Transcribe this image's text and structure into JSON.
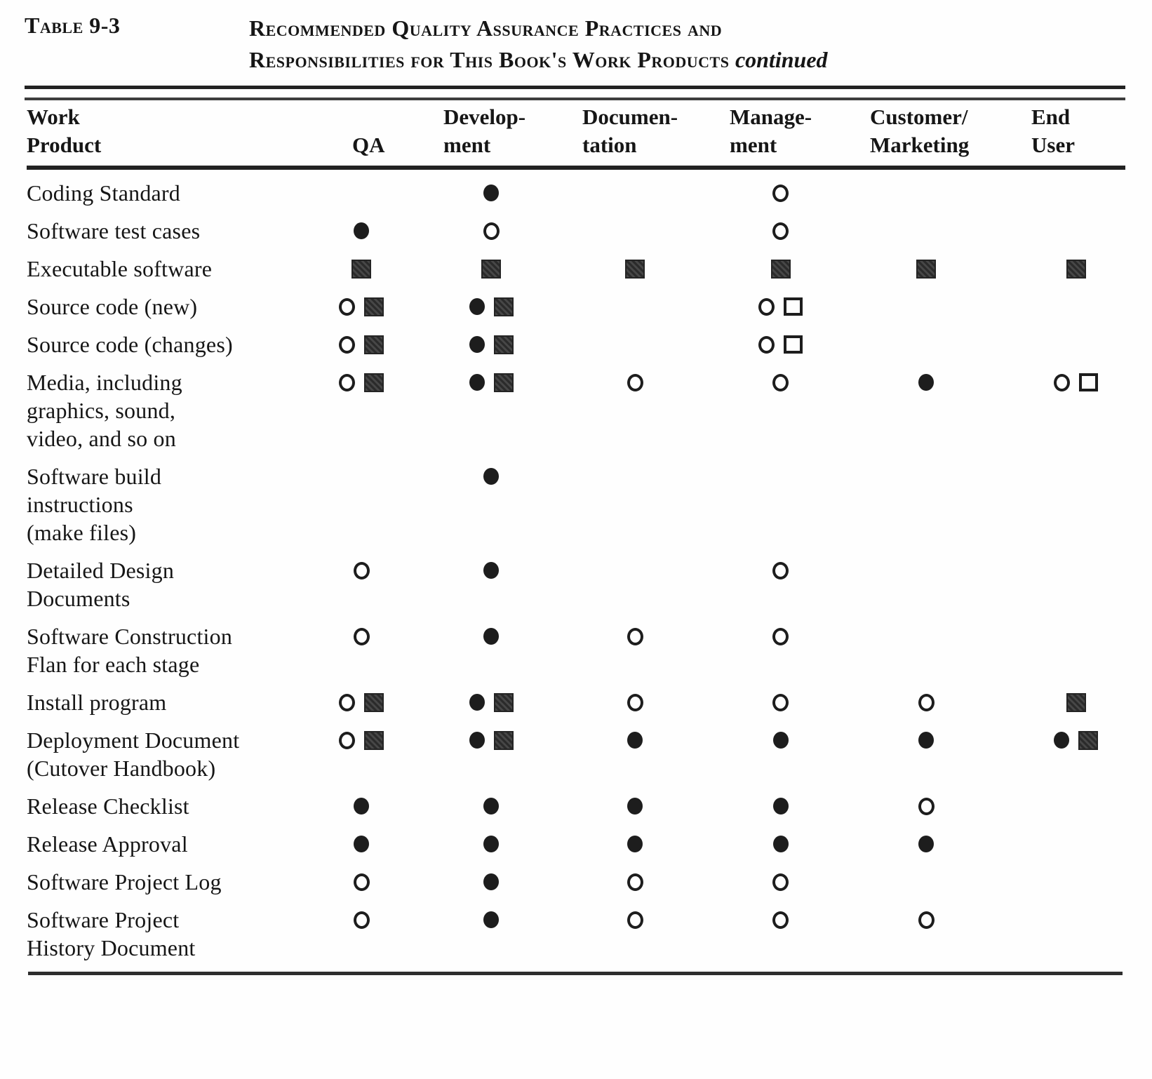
{
  "caption": {
    "label": "Table 9-3",
    "title_line1": "Recommended Quality Assurance Practices and",
    "title_line2": "Responsibilities for This Book's Work Products",
    "continued": "continued"
  },
  "columns": [
    {
      "id": "work-product",
      "line1": "Work",
      "line2": "Product"
    },
    {
      "id": "qa",
      "line1": "",
      "line2": "QA"
    },
    {
      "id": "development",
      "line1": "Develop-",
      "line2": "ment"
    },
    {
      "id": "documentation",
      "line1": "Documen-",
      "line2": "tation"
    },
    {
      "id": "management",
      "line1": "Manage-",
      "line2": "ment"
    },
    {
      "id": "customer-marketing",
      "line1": "Customer/",
      "line2": "Marketing"
    },
    {
      "id": "end-user",
      "line1": "End",
      "line2": "User"
    }
  ],
  "symbols": {
    "filled-circle": "●",
    "open-circle": "○",
    "filled-square": "■",
    "open-square": "□"
  },
  "rows": [
    {
      "label": [
        "Coding Standard"
      ],
      "cells": [
        [],
        [
          "filled-circle"
        ],
        [],
        [
          "open-circle"
        ],
        [],
        []
      ]
    },
    {
      "label": [
        "Software test cases"
      ],
      "cells": [
        [
          "filled-circle"
        ],
        [
          "open-circle"
        ],
        [],
        [
          "open-circle"
        ],
        [],
        []
      ]
    },
    {
      "label": [
        "Executable software"
      ],
      "cells": [
        [
          "filled-square"
        ],
        [
          "filled-square"
        ],
        [
          "filled-square"
        ],
        [
          "filled-square"
        ],
        [
          "filled-square"
        ],
        [
          "filled-square"
        ]
      ]
    },
    {
      "label": [
        "Source code (new)"
      ],
      "cells": [
        [
          "open-circle",
          "filled-square"
        ],
        [
          "filled-circle",
          "filled-square"
        ],
        [],
        [
          "open-circle",
          "open-square"
        ],
        [],
        []
      ]
    },
    {
      "label": [
        "Source code (changes)"
      ],
      "cells": [
        [
          "open-circle",
          "filled-square"
        ],
        [
          "filled-circle",
          "filled-square"
        ],
        [],
        [
          "open-circle",
          "open-square"
        ],
        [],
        []
      ]
    },
    {
      "label": [
        "Media, including",
        "graphics, sound,",
        "video, and so on"
      ],
      "cells": [
        [
          "open-circle",
          "filled-square"
        ],
        [
          "filled-circle",
          "filled-square"
        ],
        [
          "open-circle"
        ],
        [
          "open-circle"
        ],
        [
          "filled-circle"
        ],
        [
          "open-circle",
          "open-square"
        ]
      ]
    },
    {
      "label": [
        "Software build",
        "instructions",
        "(make files)"
      ],
      "cells": [
        [],
        [
          "filled-circle"
        ],
        [],
        [],
        [],
        []
      ]
    },
    {
      "label": [
        "Detailed Design",
        "Documents"
      ],
      "cells": [
        [
          "open-circle"
        ],
        [
          "filled-circle"
        ],
        [],
        [
          "open-circle"
        ],
        [],
        []
      ]
    },
    {
      "label": [
        "Software Construction",
        "Flan for each stage"
      ],
      "cells": [
        [
          "open-circle"
        ],
        [
          "filled-circle"
        ],
        [
          "open-circle"
        ],
        [
          "open-circle"
        ],
        [],
        []
      ]
    },
    {
      "label": [
        "Install program"
      ],
      "cells": [
        [
          "open-circle",
          "filled-square"
        ],
        [
          "filled-circle",
          "filled-square"
        ],
        [
          "open-circle"
        ],
        [
          "open-circle"
        ],
        [
          "open-circle"
        ],
        [
          "filled-square"
        ]
      ]
    },
    {
      "label": [
        "Deployment Document",
        "(Cutover Handbook)"
      ],
      "cells": [
        [
          "open-circle",
          "filled-square"
        ],
        [
          "filled-circle",
          "filled-square"
        ],
        [
          "filled-circle"
        ],
        [
          "filled-circle"
        ],
        [
          "filled-circle"
        ],
        [
          "filled-circle",
          "filled-square"
        ]
      ]
    },
    {
      "label": [
        "Release Checklist"
      ],
      "cells": [
        [
          "filled-circle"
        ],
        [
          "filled-circle"
        ],
        [
          "filled-circle"
        ],
        [
          "filled-circle"
        ],
        [
          "open-circle"
        ],
        []
      ]
    },
    {
      "label": [
        "Release Approval"
      ],
      "cells": [
        [
          "filled-circle"
        ],
        [
          "filled-circle"
        ],
        [
          "filled-circle"
        ],
        [
          "filled-circle"
        ],
        [
          "filled-circle"
        ],
        []
      ]
    },
    {
      "label": [
        "Software Project Log"
      ],
      "cells": [
        [
          "open-circle"
        ],
        [
          "filled-circle"
        ],
        [
          "open-circle"
        ],
        [
          "open-circle"
        ],
        [],
        []
      ]
    },
    {
      "label": [
        "Software Project",
        "History Document"
      ],
      "cells": [
        [
          "open-circle"
        ],
        [
          "filled-circle"
        ],
        [
          "open-circle"
        ],
        [
          "open-circle"
        ],
        [
          "open-circle"
        ],
        []
      ]
    }
  ]
}
